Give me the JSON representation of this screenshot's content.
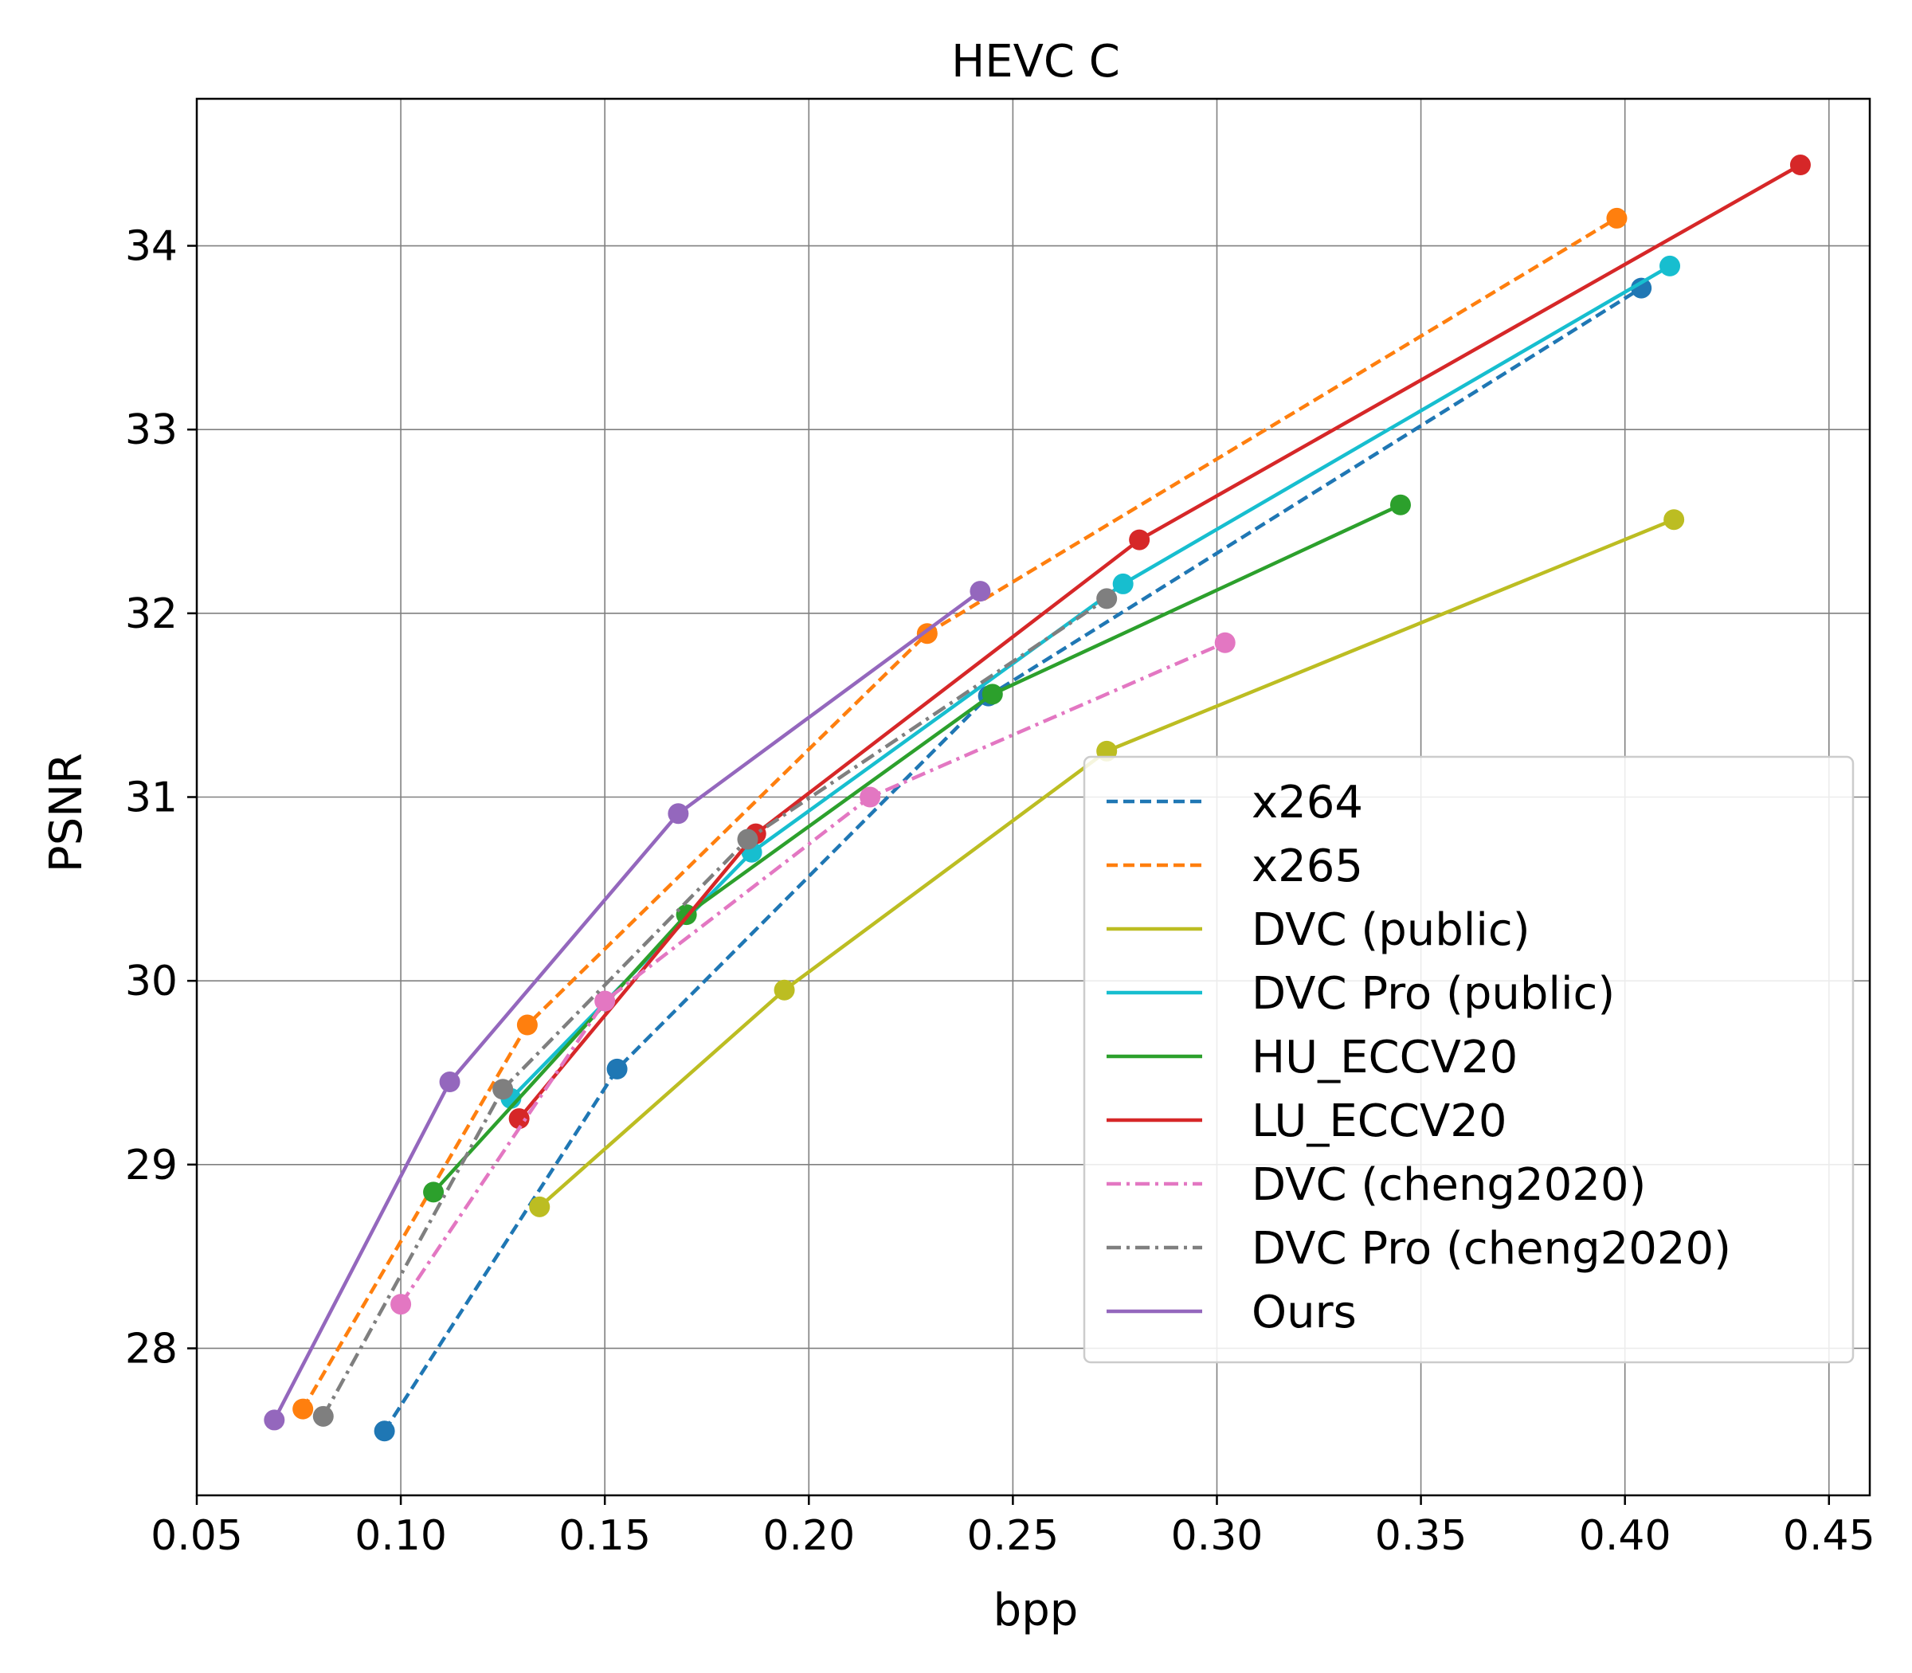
{
  "chart_data": {
    "type": "line",
    "title": "HEVC C",
    "xlabel": "bpp",
    "ylabel": "PSNR",
    "xlim": [
      0.05,
      0.46
    ],
    "ylim": [
      27.2,
      34.8
    ],
    "xticks": [
      0.05,
      0.1,
      0.15,
      0.2,
      0.25,
      0.3,
      0.35,
      0.4,
      0.45
    ],
    "xtick_labels": [
      "0.05",
      "0.10",
      "0.15",
      "0.20",
      "0.25",
      "0.30",
      "0.35",
      "0.40",
      "0.45"
    ],
    "yticks": [
      28,
      29,
      30,
      31,
      32,
      33,
      34
    ],
    "ytick_labels": [
      "28",
      "29",
      "30",
      "31",
      "32",
      "33",
      "34"
    ],
    "grid": true,
    "legend_position": "lower-right",
    "series": [
      {
        "name": "x264",
        "color": "#1f77b4",
        "dash": "dashed",
        "x": [
          0.096,
          0.153,
          0.244,
          0.404
        ],
        "y": [
          27.55,
          29.52,
          31.55,
          33.77
        ]
      },
      {
        "name": "x265",
        "color": "#ff7f0e",
        "dash": "dashed",
        "x": [
          0.076,
          0.131,
          0.229,
          0.398
        ],
        "y": [
          27.67,
          29.76,
          31.89,
          34.15
        ]
      },
      {
        "name": "DVC (public)",
        "color": "#bcbd22",
        "dash": "solid",
        "x": [
          0.134,
          0.194,
          0.273,
          0.412
        ],
        "y": [
          28.77,
          29.95,
          31.25,
          32.51
        ]
      },
      {
        "name": "DVC Pro (public)",
        "color": "#17becf",
        "dash": "solid",
        "x": [
          0.127,
          0.186,
          0.277,
          0.411
        ],
        "y": [
          29.36,
          30.7,
          32.16,
          33.89
        ]
      },
      {
        "name": "HU_ECCV20",
        "color": "#2ca02c",
        "dash": "solid",
        "x": [
          0.108,
          0.17,
          0.245,
          0.345
        ],
        "y": [
          28.85,
          30.36,
          31.56,
          32.59
        ]
      },
      {
        "name": "LU_ECCV20",
        "color": "#d62728",
        "dash": "solid",
        "x": [
          0.129,
          0.187,
          0.281,
          0.443
        ],
        "y": [
          29.25,
          30.8,
          32.4,
          34.44
        ]
      },
      {
        "name": "DVC (cheng2020)",
        "color": "#e377c2",
        "dash": "dashdot",
        "x": [
          0.1,
          0.15,
          0.215,
          0.302
        ],
        "y": [
          28.24,
          29.89,
          31.0,
          31.84
        ]
      },
      {
        "name": "DVC Pro (cheng2020)",
        "color": "#7f7f7f",
        "dash": "dashdot",
        "x": [
          0.081,
          0.125,
          0.185,
          0.273
        ],
        "y": [
          27.63,
          29.41,
          30.77,
          32.08
        ]
      },
      {
        "name": "Ours",
        "color": "#9467bd",
        "dash": "solid",
        "x": [
          0.069,
          0.112,
          0.168,
          0.242
        ],
        "y": [
          27.61,
          29.45,
          30.91,
          32.12
        ]
      }
    ]
  }
}
